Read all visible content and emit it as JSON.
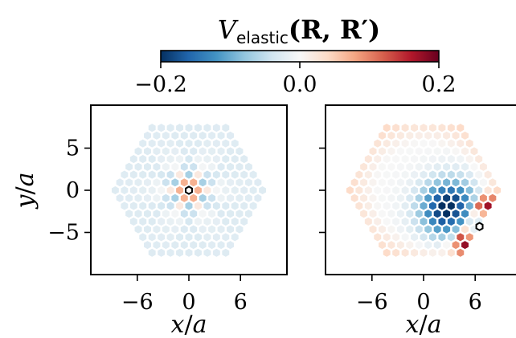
{
  "chart_data": [
    {
      "type": "heatmap",
      "panel": "left",
      "lattice": "hexagonal",
      "lattice_radius": 9,
      "source_site": [
        0,
        0
      ],
      "source_marker": "white hexagon with black outline",
      "field_description": "weak negative background, strong alternating lobes near the source",
      "xlabel": "x/a",
      "ylabel": "y/a",
      "xticks": [
        -6,
        0,
        6
      ],
      "yticks": [
        5,
        0,
        -5
      ],
      "xlim": [
        -11.5,
        11.5
      ],
      "ylim": [
        -9.5,
        9.5
      ]
    },
    {
      "type": "heatmap",
      "panel": "right",
      "lattice": "hexagonal",
      "lattice_radius": 9,
      "source_site": [
        6.5,
        -4.3
      ],
      "source_marker": "white hexagon with black outline",
      "field_description": "strong negative pocket near the source, positive ring along the boundary",
      "xlabel": "x/a",
      "xticks": [
        -6,
        0,
        6
      ],
      "yticks": [
        5,
        0,
        -5
      ],
      "xlim": [
        -11.5,
        11.5
      ],
      "ylim": [
        -9.5,
        9.5
      ]
    }
  ],
  "colorbar": {
    "title_symbol": "V",
    "title_subscript": "elastic",
    "title_args": "(R, R′)",
    "min": -0.2,
    "max": 0.2,
    "tick_labels": [
      "−0.2",
      "0.0",
      "0.2"
    ],
    "colormap": "RdBu_r",
    "colors": [
      "#053061",
      "#2166ac",
      "#4393c3",
      "#92c5de",
      "#d1e5f0",
      "#f7f7f7",
      "#fddbc7",
      "#f4a582",
      "#d6604d",
      "#b2182b",
      "#67001f"
    ]
  },
  "axes_labels": {
    "x_var": "x",
    "y_var": "y",
    "unit": "a"
  }
}
